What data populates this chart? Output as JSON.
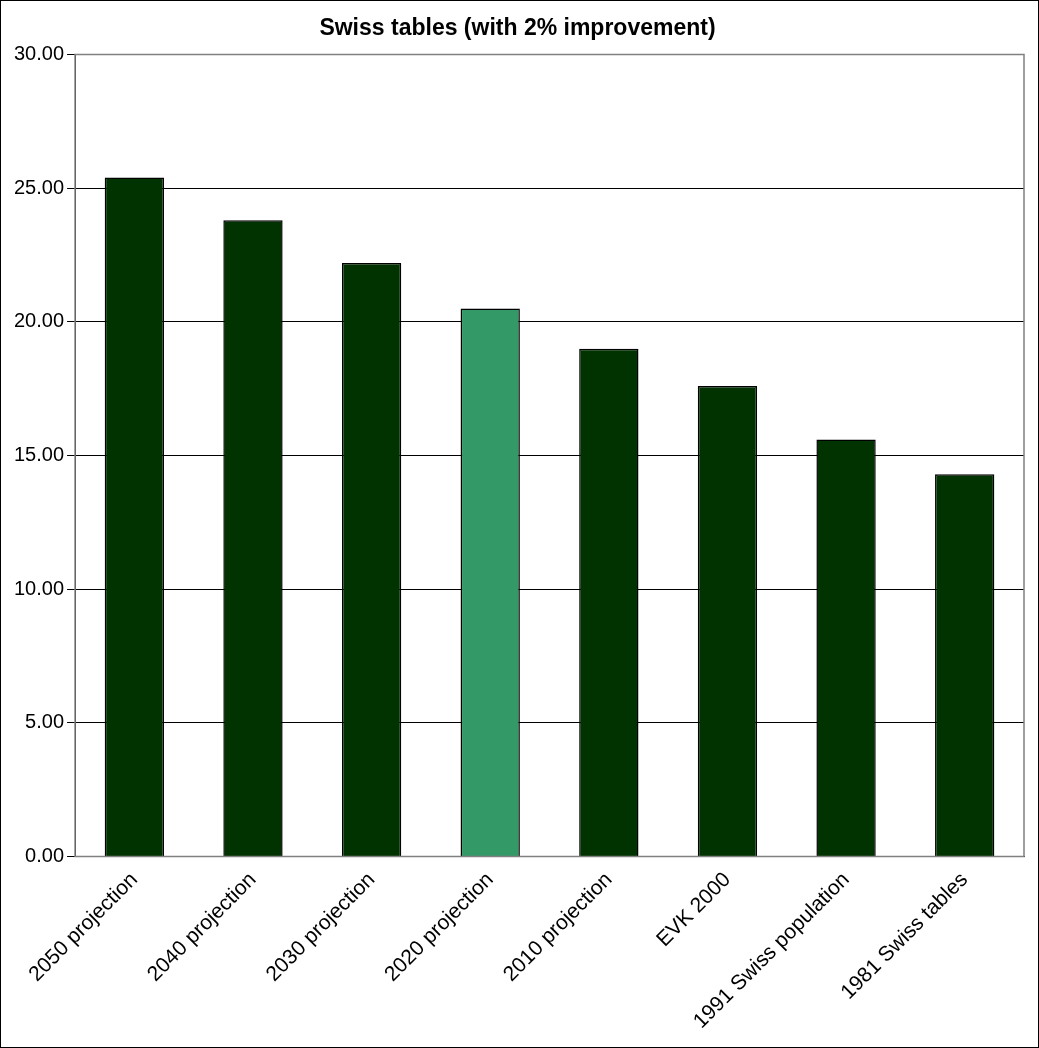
{
  "chart_data": {
    "type": "bar",
    "title": "Swiss tables (with 2% improvement)",
    "categories": [
      "2050 projection",
      "2040 projection",
      "2030 projection",
      "2020 projection",
      "2010 projection",
      "EVK 2000",
      "1991 Swiss population",
      "1981 Swiss tables"
    ],
    "values": [
      25.4,
      23.8,
      22.2,
      20.5,
      19.0,
      17.6,
      15.6,
      14.3
    ],
    "colors": [
      "#003300",
      "#003300",
      "#003300",
      "#339966",
      "#003300",
      "#003300",
      "#003300",
      "#003300"
    ],
    "ylim": [
      0,
      30
    ],
    "yticks": [
      {
        "value": 0,
        "label": "0.00"
      },
      {
        "value": 5,
        "label": "5.00"
      },
      {
        "value": 10,
        "label": "10.00"
      },
      {
        "value": 15,
        "label": "15.00"
      },
      {
        "value": 20,
        "label": "20.00"
      },
      {
        "value": 25,
        "label": "25.00"
      },
      {
        "value": 30,
        "label": "30.00"
      }
    ],
    "grid": "y",
    "legend": false
  }
}
